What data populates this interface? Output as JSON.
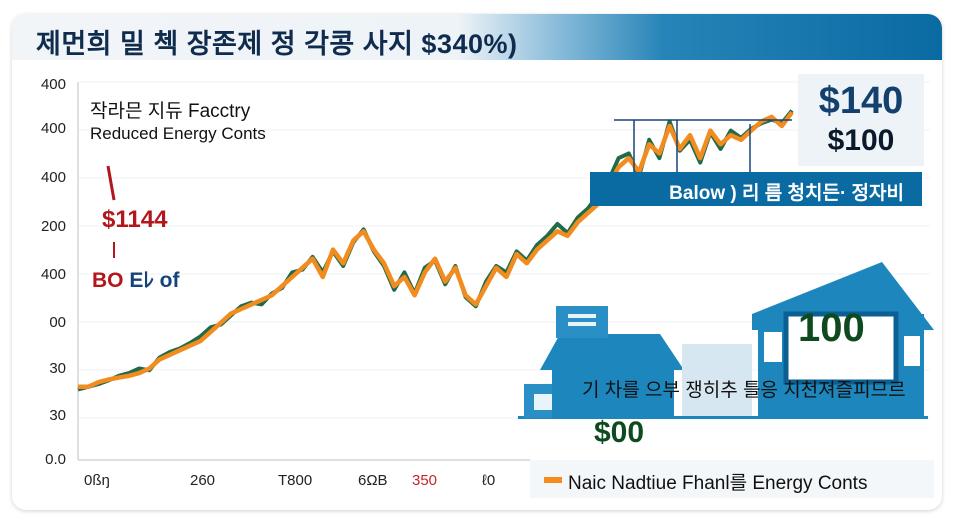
{
  "header": {
    "title": "제먼희 밀 첵 장존제 정 각콩 사지 $340%)"
  },
  "annotations": {
    "factory_title": "작라믄 지듀 Facctry",
    "factory_subtitle": "Reduced Energy Conts",
    "red_price": "$1144",
    "bo_red": "BO",
    "bo_blue": "Eﾚ of",
    "price_big": "$140",
    "price_small": "$100",
    "banner": "Balow ) 리 름  청치든· 정자비",
    "houses_caption": "기 차를 으부  쟁히추 틀응  치천져즐피므르",
    "sign_value": "100",
    "zero_price": "$00"
  },
  "legend": {
    "swatch_color": "#f28c1e",
    "label": "Naic Nadtiue Fhanl를 Energy Conts"
  },
  "colors": {
    "orange_series": "#f28c1e",
    "green_series": "#1f6b4a",
    "title_bar_blue": "#0a6aa2",
    "house_blue": "#1c86bd",
    "accent_red": "#b3161c"
  },
  "chart_data": {
    "type": "line",
    "title": "제먼희 밀 첵 장존제 정 각콩 사지 $340%)",
    "xlabel": "",
    "ylabel": "",
    "y_tick_labels": [
      "0.0",
      "30",
      "30",
      "00",
      "400",
      "200",
      "400",
      "400",
      "400"
    ],
    "x_tick_labels": [
      "0ßŋ",
      "260",
      "T800",
      "6ΩΒ",
      "350",
      "ℓ0"
    ],
    "grid": true,
    "legend_position": "bottom-right",
    "x": [
      0,
      1,
      2,
      3,
      4,
      5,
      6,
      7,
      8,
      9,
      10,
      11,
      12,
      13,
      14,
      15,
      16,
      17,
      18,
      19,
      20,
      21,
      22,
      23,
      24,
      25,
      26,
      27,
      28,
      29,
      30,
      31,
      32,
      33,
      34,
      35,
      36,
      37,
      38,
      39,
      40,
      41,
      42,
      43,
      44,
      45,
      46,
      47,
      48,
      49,
      50,
      51,
      52,
      53,
      54,
      55,
      56,
      57,
      58,
      59,
      60,
      61,
      62,
      63,
      64,
      65,
      66,
      67,
      68,
      69,
      70
    ],
    "series": [
      {
        "name": "Naic Nadtiue Fhanl를 Energy Conts",
        "color": "#f28c1e",
        "values": [
          80,
          80,
          85,
          88,
          90,
          92,
          95,
          100,
          110,
          115,
          120,
          125,
          130,
          140,
          150,
          160,
          165,
          170,
          175,
          180,
          190,
          200,
          210,
          220,
          200,
          230,
          215,
          240,
          250,
          230,
          215,
          190,
          200,
          180,
          205,
          220,
          195,
          210,
          180,
          170,
          190,
          210,
          200,
          225,
          215,
          230,
          240,
          250,
          245,
          260,
          270,
          280,
          300,
          320,
          330,
          315,
          345,
          335,
          365,
          340,
          355,
          330,
          360,
          345,
          355,
          350,
          360,
          370,
          375,
          365,
          380
        ]
      },
      {
        "name": "green",
        "color": "#1f6b4a",
        "values": [
          77,
          80,
          83,
          87,
          92,
          95,
          100,
          98,
          112,
          118,
          122,
          128,
          135,
          145,
          148,
          158,
          168,
          172,
          170,
          182,
          188,
          205,
          208,
          222,
          205,
          228,
          212,
          238,
          252,
          228,
          212,
          186,
          205,
          182,
          210,
          218,
          192,
          212,
          178,
          168,
          195,
          212,
          205,
          228,
          218,
          235,
          245,
          258,
          248,
          265,
          275,
          290,
          305,
          330,
          335,
          310,
          350,
          330,
          370,
          338,
          350,
          325,
          358,
          340,
          360,
          352,
          362,
          368,
          372,
          368,
          382
        ]
      }
    ],
    "ylim": [
      0,
      400
    ]
  }
}
